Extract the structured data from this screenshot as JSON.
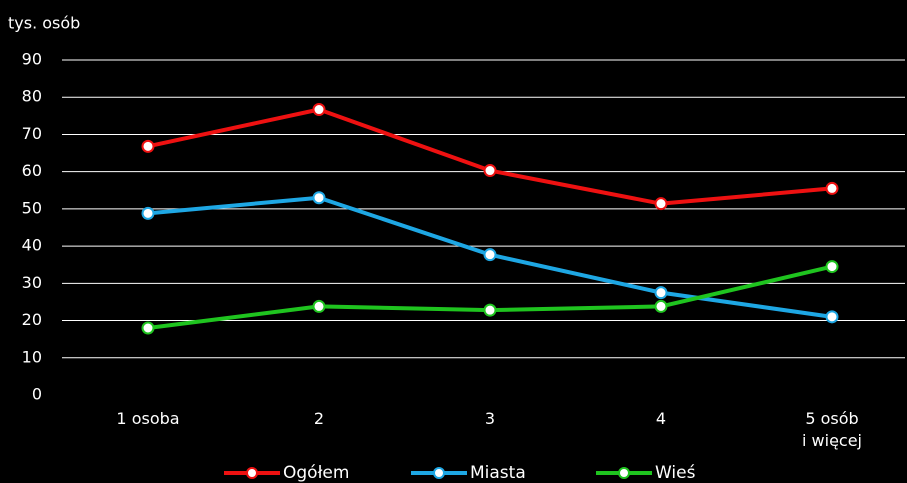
{
  "chart_data": {
    "type": "line",
    "ylabel": "tys. osób",
    "categories": [
      "1 osoba",
      "2",
      "3",
      "4",
      "5 osób\ni więcej"
    ],
    "series": [
      {
        "name": "Ogółem",
        "color": "#ee1111",
        "values": [
          66.8,
          76.7,
          60.3,
          51.4,
          55.5
        ]
      },
      {
        "name": "Miasta",
        "color": "#1ea7e4",
        "values": [
          48.8,
          53,
          37.7,
          27.5,
          21
        ]
      },
      {
        "name": "Wieś",
        "color": "#1fc41f",
        "values": [
          18,
          23.8,
          22.8,
          23.8,
          34.5
        ]
      }
    ],
    "ylim": [
      0,
      90
    ],
    "yticks": [
      0,
      10,
      20,
      30,
      40,
      50,
      60,
      70,
      80,
      90
    ],
    "grid": true,
    "legend": "bottom"
  }
}
